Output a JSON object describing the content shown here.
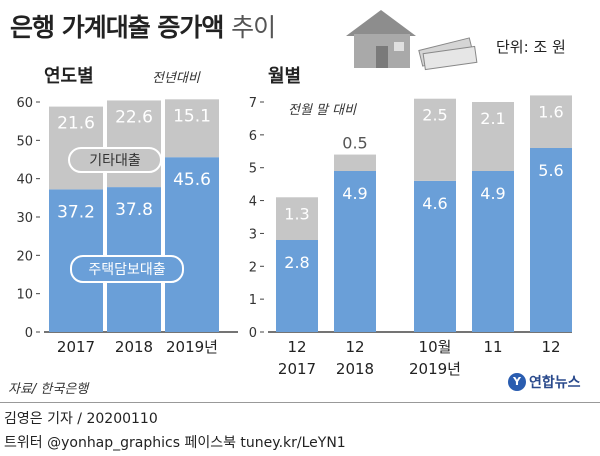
{
  "header": {
    "title_main": "은행 가계대출 증가액",
    "title_sub": "추이",
    "unit": "단위: 조 원"
  },
  "footer": {
    "source": "자료/ 한국은행",
    "logo_text": "연합뉴스",
    "credit": "김영은 기자 / 20200110",
    "twitter": "트위터 @yonhap_graphics  페이스북 tuney.kr/LeYN1"
  },
  "colors": {
    "housing": "#6a9fd8",
    "other": "#c6c6c6",
    "text": "#222222"
  },
  "chart_data": [
    {
      "type": "bar",
      "stacked": true,
      "title": "연도별",
      "subtitle": "전년대비",
      "categories": [
        "2017",
        "2018",
        "2019년"
      ],
      "series": [
        {
          "name": "주택담보대출",
          "values": [
            37.2,
            37.8,
            45.6
          ]
        },
        {
          "name": "기타대출",
          "values": [
            21.6,
            22.6,
            15.1
          ]
        }
      ],
      "ylim": [
        0,
        60
      ],
      "yticks": [
        "0",
        "10",
        "20",
        "30",
        "40",
        "50",
        "60"
      ],
      "grid": false
    },
    {
      "type": "bar",
      "stacked": true,
      "title": "월별",
      "subtitle": "전월 말 대비",
      "categories": [
        "12 2017",
        "12 2018",
        "10월 2019년",
        "11",
        "12"
      ],
      "series": [
        {
          "name": "주택담보대출",
          "values": [
            2.8,
            4.9,
            4.6,
            4.9,
            5.6
          ]
        },
        {
          "name": "기타대출",
          "values": [
            1.3,
            0.5,
            2.5,
            2.1,
            1.6
          ]
        }
      ],
      "ylim": [
        0,
        7
      ],
      "yticks": [
        "0",
        "1",
        "2",
        "3",
        "4",
        "5",
        "6",
        "7"
      ],
      "grid": false
    }
  ]
}
